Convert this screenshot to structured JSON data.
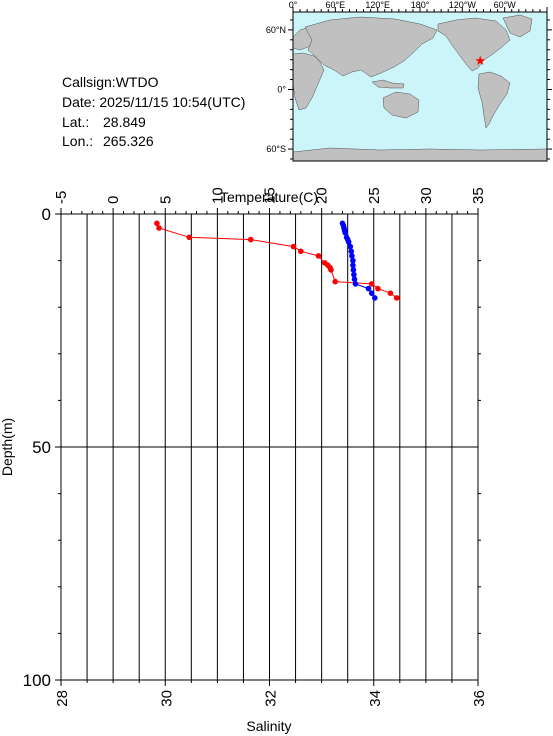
{
  "info": {
    "callsign": "Callsign:WTDO",
    "date": "Date:  2025/11/15 10:54(UTC)",
    "lat_label": "Lat.:",
    "lat_value": "28.849",
    "lon_label": "Lon.:",
    "lon_value": "265.326"
  },
  "map": {
    "lon_ticks": [
      "0°",
      "60°E",
      "120°E",
      "180°",
      "120°W",
      "60°W"
    ],
    "lat_ticks": [
      "60°N",
      "0°",
      "60°S"
    ],
    "marker": {
      "lon": 265.326,
      "lat": 28.849,
      "color": "#ff0000",
      "icon": "star-icon"
    },
    "land_color": "#c0c0c0",
    "ocean_color": "#ccf5fa"
  },
  "chart_data": {
    "type": "line",
    "top_axis_label": "Temperature(C)",
    "bottom_axis_label": "Salinity",
    "y_axis_label": "Depth(m)",
    "temperature_range": [
      -5,
      35
    ],
    "temperature_ticks": [
      "-5",
      "0",
      "5",
      "10",
      "15",
      "20",
      "25",
      "30",
      "35"
    ],
    "salinity_range": [
      28,
      36
    ],
    "salinity_ticks": [
      "28",
      "30",
      "32",
      "34",
      "36"
    ],
    "depth_range": [
      0,
      100
    ],
    "depth_ticks": [
      "0",
      "50",
      "100"
    ],
    "grid": true,
    "series": [
      {
        "id": "temperature",
        "color": "#ff0000",
        "depth": [
          2.0,
          3.0,
          5.0,
          5.5,
          7.0,
          8.0,
          9.0,
          10.5,
          11.0,
          11.5,
          12.0,
          14.5,
          15.0,
          16.0,
          17.0,
          18.0
        ],
        "values": [
          4.2,
          4.4,
          7.3,
          13.2,
          17.3,
          18.0,
          19.7,
          20.3,
          20.6,
          20.8,
          20.9,
          21.3,
          24.8,
          25.4,
          26.6,
          27.2
        ]
      },
      {
        "id": "salinity",
        "color": "#0000ff",
        "depth": [
          2.0,
          2.5,
          3.0,
          3.5,
          4.0,
          5.0,
          5.5,
          6.0,
          7.0,
          8.0,
          9.0,
          10.0,
          11.0,
          12.0,
          13.0,
          14.0,
          15.0,
          16.0,
          17.0,
          18.0
        ],
        "values": [
          33.4,
          33.42,
          33.43,
          33.44,
          33.45,
          33.48,
          33.5,
          33.52,
          33.55,
          33.57,
          33.58,
          33.6,
          33.6,
          33.61,
          33.62,
          33.63,
          33.65,
          33.9,
          33.96,
          34.02
        ]
      }
    ]
  }
}
